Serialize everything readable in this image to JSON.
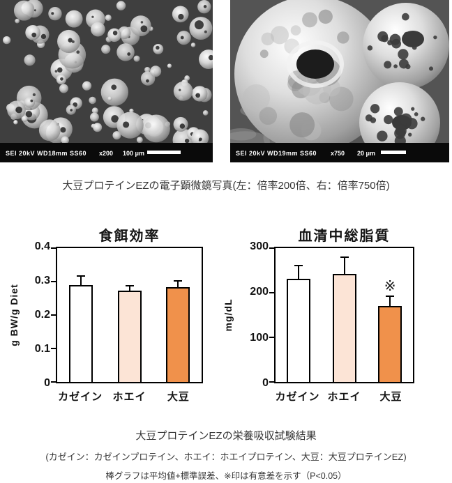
{
  "captions": {
    "sem": "大豆プロテインEZの電子顕微鏡写真(左：倍率200倍、右：倍率750倍)",
    "results": "大豆プロテインEZの栄養吸収試験結果",
    "legend": "(カゼイン：カゼインプロテイン、ホエイ：ホエイプロテイン、大豆：大豆プロテインEZ)",
    "note": "棒グラフは平均値+標準誤差、※印は有意差を示す（P<0.05）"
  },
  "sem_images": {
    "left": {
      "meta": "SEI   20kV    WD18mm  SS60",
      "magnification": "x200",
      "scale_label": "100 μm"
    },
    "right": {
      "meta": "SEI   20kV    WD19mm  SS60",
      "magnification": "x750",
      "scale_label": "20 μm"
    }
  },
  "chart_data": [
    {
      "type": "bar",
      "title": "食餌効率",
      "ylabel": "g BW/g Diet",
      "ylim": [
        0,
        0.4
      ],
      "yticks": [
        0,
        0.1,
        0.2,
        0.3,
        0.4
      ],
      "ytick_labels": [
        "0",
        "0.1",
        "0.2",
        "0.3",
        "0.4"
      ],
      "categories": [
        "カゼイン",
        "ホエイ",
        "大豆"
      ],
      "values": [
        0.29,
        0.273,
        0.283
      ],
      "errors_plus": [
        0.025,
        0.012,
        0.017
      ],
      "sig_marks": [
        "",
        "",
        ""
      ],
      "bar_colors": [
        "#FFFFFF",
        "#FCE4D6",
        "#F0914B"
      ],
      "bar_border_color": "#000000",
      "grid": false,
      "legend": "none"
    },
    {
      "type": "bar",
      "title": "血清中総脂質",
      "ylabel": "mg/dL",
      "ylim": [
        0,
        300
      ],
      "yticks": [
        0,
        100,
        200,
        300
      ],
      "ytick_labels": [
        "0",
        "100",
        "200",
        "300"
      ],
      "categories": [
        "カゼイン",
        "ホエイ",
        "大豆"
      ],
      "values": [
        232,
        242,
        170
      ],
      "errors_plus": [
        27,
        36,
        21
      ],
      "sig_marks": [
        "",
        "",
        "※"
      ],
      "bar_colors": [
        "#FFFFFF",
        "#FCE4D6",
        "#F0914B"
      ],
      "bar_border_color": "#000000",
      "grid": false,
      "legend": "none"
    }
  ]
}
